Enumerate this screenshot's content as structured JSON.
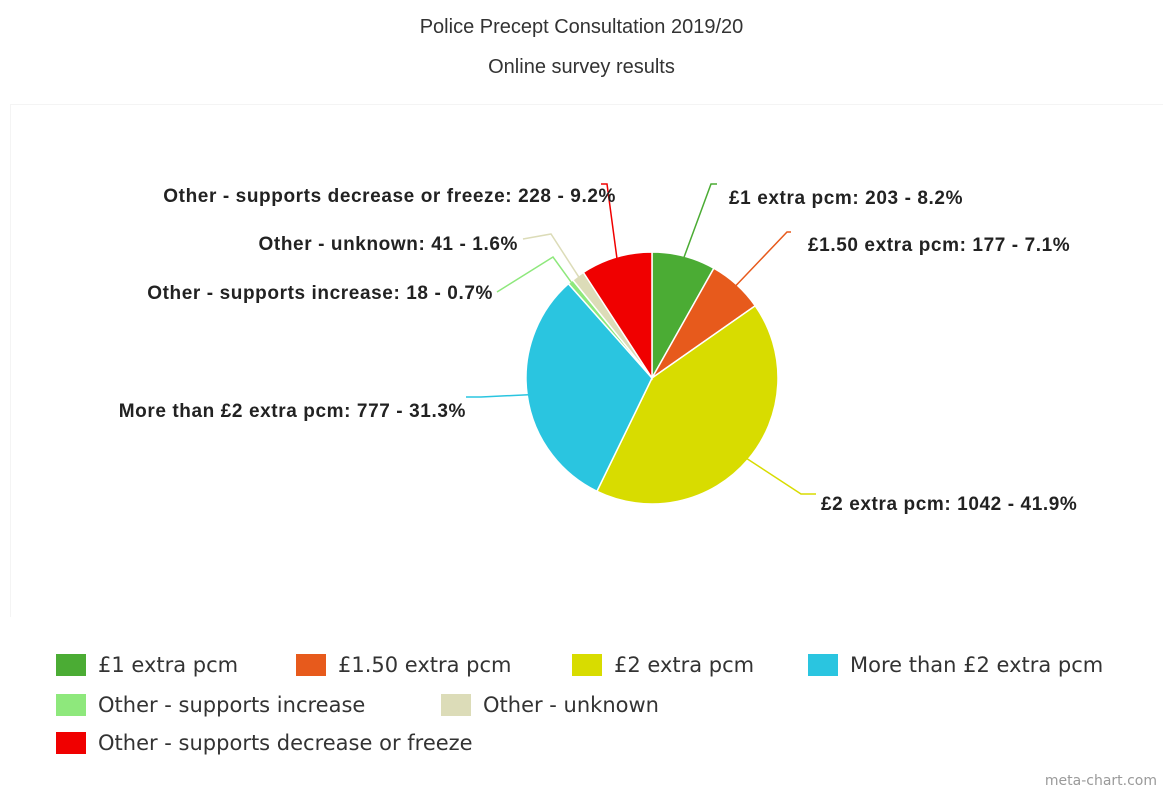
{
  "chart_data": {
    "type": "pie",
    "title": "Police Precept Consultation 2019/20",
    "subtitle": "Online survey results",
    "legend_position": "bottom",
    "slices": [
      {
        "name": "£1 extra pcm",
        "value": 203,
        "percent": 8.2,
        "color": "#4bac34",
        "label": "£1 extra pcm: 203 - 8.2%"
      },
      {
        "name": "£1.50 extra pcm",
        "value": 177,
        "percent": 7.1,
        "color": "#e75a1c",
        "label": "£1.50 extra pcm: 177 - 7.1%"
      },
      {
        "name": "£2 extra pcm",
        "value": 1042,
        "percent": 41.9,
        "color": "#d8dc00",
        "label": "£2 extra pcm: 1042 - 41.9%"
      },
      {
        "name": "More than £2 extra pcm",
        "value": 777,
        "percent": 31.3,
        "color": "#2ac5e0",
        "label": "More than £2 extra pcm: 777 - 31.3%"
      },
      {
        "name": "Other - supports increase",
        "value": 18,
        "percent": 0.7,
        "color": "#8ee87c",
        "label": "Other - supports increase: 18 - 0.7%"
      },
      {
        "name": "Other - unknown",
        "value": 41,
        "percent": 1.6,
        "color": "#dcdcb8",
        "label": "Other - unknown: 41 - 1.6%"
      },
      {
        "name": "Other - supports decrease or freeze",
        "value": 228,
        "percent": 9.2,
        "color": "#f00000",
        "label": "Other - supports decrease or freeze: 228 - 9.2%"
      }
    ]
  },
  "legend_items": [
    "£1 extra pcm",
    "£1.50 extra pcm",
    "£2 extra pcm",
    "More than £2 extra pcm",
    "Other - supports increase",
    "Other - unknown",
    "Other - supports decrease or freeze"
  ],
  "watermark": "meta-chart.com"
}
